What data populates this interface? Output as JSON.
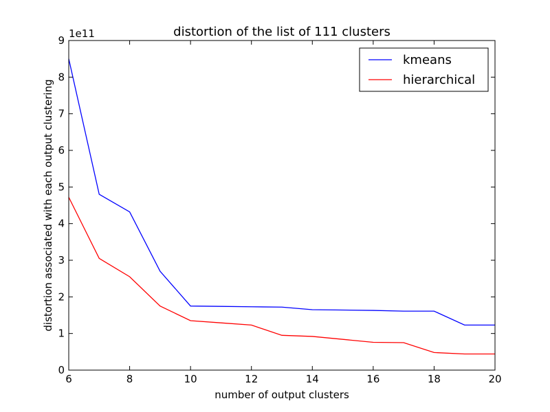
{
  "chart_data": {
    "type": "line",
    "title": "distortion of the list of 111 clusters",
    "xlabel": "number of output clusters",
    "ylabel": "distortion associated with each output clustering",
    "y_offset_text": "1e11",
    "xlim": [
      6,
      20
    ],
    "ylim": [
      0,
      9
    ],
    "x_ticks": [
      6,
      8,
      10,
      12,
      14,
      16,
      18,
      20
    ],
    "y_ticks": [
      0,
      1,
      2,
      3,
      4,
      5,
      6,
      7,
      8,
      9
    ],
    "grid": false,
    "legend_position": "top-right",
    "series": [
      {
        "name": "kmeans",
        "color": "#0000ff",
        "x": [
          6,
          7,
          8,
          9,
          10,
          11,
          12,
          13,
          14,
          15,
          16,
          17,
          18,
          19,
          20
        ],
        "y": [
          8.5,
          4.8,
          4.32,
          2.7,
          1.75,
          1.74,
          1.73,
          1.72,
          1.65,
          1.64,
          1.63,
          1.61,
          1.61,
          1.23,
          1.23
        ]
      },
      {
        "name": "hierarchical",
        "color": "#ff0000",
        "x": [
          6,
          7,
          8,
          9,
          10,
          11,
          12,
          13,
          14,
          15,
          16,
          17,
          18,
          19,
          20
        ],
        "y": [
          4.72,
          3.05,
          2.55,
          1.75,
          1.35,
          1.29,
          1.23,
          0.95,
          0.92,
          0.84,
          0.76,
          0.75,
          0.48,
          0.44,
          0.44
        ]
      }
    ]
  }
}
